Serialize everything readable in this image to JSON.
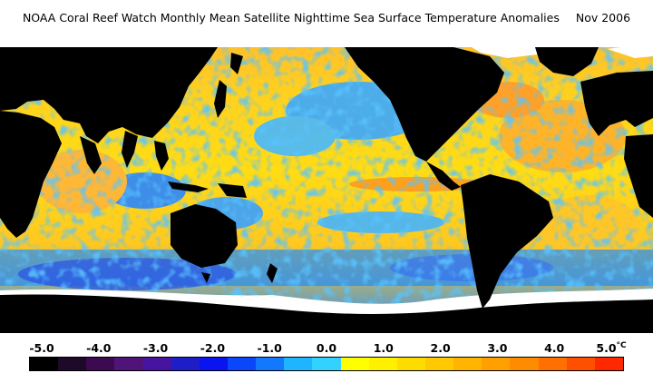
{
  "title": {
    "text": "NOAA Coral Reef Watch Monthly Mean Satellite Nighttime Sea Surface Temperature Anomalies",
    "date": "Nov 2006"
  },
  "legend": {
    "unit": "°C",
    "ticks": [
      "-5.0",
      "-4.0",
      "-3.0",
      "-2.0",
      "-1.0",
      "0.0",
      "1.0",
      "2.0",
      "3.0",
      "4.0",
      "5.0"
    ],
    "range": [
      -5.0,
      5.0
    ],
    "step": 0.5,
    "colors": [
      "#000000",
      "#1e0a28",
      "#3c0a50",
      "#501478",
      "#4614a0",
      "#1e1ec8",
      "#0a14f0",
      "#0a46fa",
      "#1478ff",
      "#1eb4ff",
      "#32d2ff",
      "#ffff00",
      "#fff000",
      "#ffdc00",
      "#ffc800",
      "#ffb400",
      "#ffa000",
      "#ff8c00",
      "#ff7000",
      "#ff5000",
      "#ff2800"
    ]
  },
  "map": {
    "land_color": "#000000",
    "ice_color": "#ffffff",
    "palette": {
      "warm": "#ffd700",
      "warm_strong": "#ff9a1e",
      "cool": "#2aaeff",
      "cool_strong": "#1e5cf0",
      "neutral": "#ffee00"
    }
  }
}
